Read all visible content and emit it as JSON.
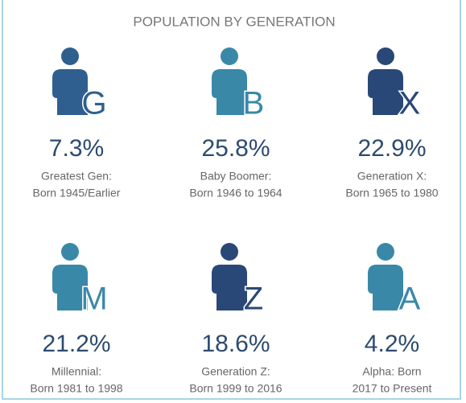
{
  "title": "POPULATION BY GENERATION",
  "generations": [
    {
      "letter": "G",
      "percent": "7.3%",
      "name": "Greatest Gen:",
      "born": "Born 1945/Earlier",
      "color": "#2f5f8f"
    },
    {
      "letter": "B",
      "percent": "25.8%",
      "name": "Baby Boomer:",
      "born": "Born 1946 to 1964",
      "color": "#3a88a8"
    },
    {
      "letter": "X",
      "percent": "22.9%",
      "name": "Generation X:",
      "born": "Born 1965 to 1980",
      "color": "#2a4877"
    },
    {
      "letter": "M",
      "percent": "21.2%",
      "name": "Millennial:",
      "born": "Born 1981 to 1998",
      "color": "#3a88a8"
    },
    {
      "letter": "Z",
      "percent": "18.6%",
      "name": "Generation Z:",
      "born": "Born 1999 to 2016",
      "color": "#2a4877"
    },
    {
      "letter": "A",
      "percent": "4.2%",
      "name": "Alpha:  Born",
      "born": "2017 to Present",
      "color": "#3a88a8"
    }
  ]
}
